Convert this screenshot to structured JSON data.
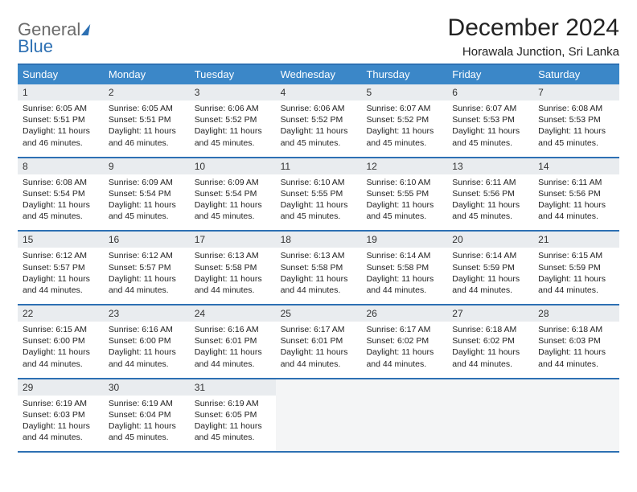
{
  "brand": {
    "line1": "General",
    "line2": "Blue"
  },
  "header": {
    "title": "December 2024",
    "location": "Horawala Junction, Sri Lanka"
  },
  "colors": {
    "accent": "#2d70b3",
    "header_bg": "#3b87c8",
    "daynum_bg": "#e9ecef",
    "empty_bg": "#f4f5f6",
    "text": "#222222",
    "logo_gray": "#6b6b6b"
  },
  "calendar": {
    "day_names": [
      "Sunday",
      "Monday",
      "Tuesday",
      "Wednesday",
      "Thursday",
      "Friday",
      "Saturday"
    ],
    "weeks": [
      [
        {
          "n": "1",
          "sunrise": "6:05 AM",
          "sunset": "5:51 PM",
          "daylight": "11 hours and 46 minutes."
        },
        {
          "n": "2",
          "sunrise": "6:05 AM",
          "sunset": "5:51 PM",
          "daylight": "11 hours and 46 minutes."
        },
        {
          "n": "3",
          "sunrise": "6:06 AM",
          "sunset": "5:52 PM",
          "daylight": "11 hours and 45 minutes."
        },
        {
          "n": "4",
          "sunrise": "6:06 AM",
          "sunset": "5:52 PM",
          "daylight": "11 hours and 45 minutes."
        },
        {
          "n": "5",
          "sunrise": "6:07 AM",
          "sunset": "5:52 PM",
          "daylight": "11 hours and 45 minutes."
        },
        {
          "n": "6",
          "sunrise": "6:07 AM",
          "sunset": "5:53 PM",
          "daylight": "11 hours and 45 minutes."
        },
        {
          "n": "7",
          "sunrise": "6:08 AM",
          "sunset": "5:53 PM",
          "daylight": "11 hours and 45 minutes."
        }
      ],
      [
        {
          "n": "8",
          "sunrise": "6:08 AM",
          "sunset": "5:54 PM",
          "daylight": "11 hours and 45 minutes."
        },
        {
          "n": "9",
          "sunrise": "6:09 AM",
          "sunset": "5:54 PM",
          "daylight": "11 hours and 45 minutes."
        },
        {
          "n": "10",
          "sunrise": "6:09 AM",
          "sunset": "5:54 PM",
          "daylight": "11 hours and 45 minutes."
        },
        {
          "n": "11",
          "sunrise": "6:10 AM",
          "sunset": "5:55 PM",
          "daylight": "11 hours and 45 minutes."
        },
        {
          "n": "12",
          "sunrise": "6:10 AM",
          "sunset": "5:55 PM",
          "daylight": "11 hours and 45 minutes."
        },
        {
          "n": "13",
          "sunrise": "6:11 AM",
          "sunset": "5:56 PM",
          "daylight": "11 hours and 45 minutes."
        },
        {
          "n": "14",
          "sunrise": "6:11 AM",
          "sunset": "5:56 PM",
          "daylight": "11 hours and 44 minutes."
        }
      ],
      [
        {
          "n": "15",
          "sunrise": "6:12 AM",
          "sunset": "5:57 PM",
          "daylight": "11 hours and 44 minutes."
        },
        {
          "n": "16",
          "sunrise": "6:12 AM",
          "sunset": "5:57 PM",
          "daylight": "11 hours and 44 minutes."
        },
        {
          "n": "17",
          "sunrise": "6:13 AM",
          "sunset": "5:58 PM",
          "daylight": "11 hours and 44 minutes."
        },
        {
          "n": "18",
          "sunrise": "6:13 AM",
          "sunset": "5:58 PM",
          "daylight": "11 hours and 44 minutes."
        },
        {
          "n": "19",
          "sunrise": "6:14 AM",
          "sunset": "5:58 PM",
          "daylight": "11 hours and 44 minutes."
        },
        {
          "n": "20",
          "sunrise": "6:14 AM",
          "sunset": "5:59 PM",
          "daylight": "11 hours and 44 minutes."
        },
        {
          "n": "21",
          "sunrise": "6:15 AM",
          "sunset": "5:59 PM",
          "daylight": "11 hours and 44 minutes."
        }
      ],
      [
        {
          "n": "22",
          "sunrise": "6:15 AM",
          "sunset": "6:00 PM",
          "daylight": "11 hours and 44 minutes."
        },
        {
          "n": "23",
          "sunrise": "6:16 AM",
          "sunset": "6:00 PM",
          "daylight": "11 hours and 44 minutes."
        },
        {
          "n": "24",
          "sunrise": "6:16 AM",
          "sunset": "6:01 PM",
          "daylight": "11 hours and 44 minutes."
        },
        {
          "n": "25",
          "sunrise": "6:17 AM",
          "sunset": "6:01 PM",
          "daylight": "11 hours and 44 minutes."
        },
        {
          "n": "26",
          "sunrise": "6:17 AM",
          "sunset": "6:02 PM",
          "daylight": "11 hours and 44 minutes."
        },
        {
          "n": "27",
          "sunrise": "6:18 AM",
          "sunset": "6:02 PM",
          "daylight": "11 hours and 44 minutes."
        },
        {
          "n": "28",
          "sunrise": "6:18 AM",
          "sunset": "6:03 PM",
          "daylight": "11 hours and 44 minutes."
        }
      ],
      [
        {
          "n": "29",
          "sunrise": "6:19 AM",
          "sunset": "6:03 PM",
          "daylight": "11 hours and 44 minutes."
        },
        {
          "n": "30",
          "sunrise": "6:19 AM",
          "sunset": "6:04 PM",
          "daylight": "11 hours and 45 minutes."
        },
        {
          "n": "31",
          "sunrise": "6:19 AM",
          "sunset": "6:05 PM",
          "daylight": "11 hours and 45 minutes."
        },
        null,
        null,
        null,
        null
      ]
    ]
  },
  "labels": {
    "sunrise": "Sunrise:",
    "sunset": "Sunset:",
    "daylight": "Daylight:"
  }
}
